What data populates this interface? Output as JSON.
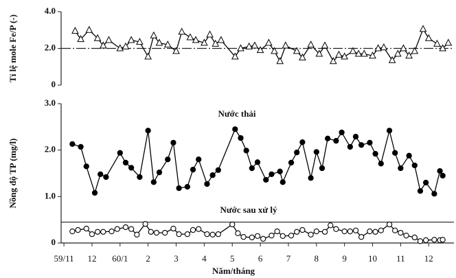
{
  "chart_data": [
    {
      "type": "line",
      "ylabel": "Tỉ lệ mole Fe/P (-)",
      "marker": "triangle",
      "color": "#000000",
      "xlim": [
        -0.1,
        13.9
      ],
      "ylim": [
        0,
        4
      ],
      "yticks": [
        {
          "value": 0,
          "label": "0"
        },
        {
          "value": 2,
          "label": "2.0"
        },
        {
          "value": 4,
          "label": "4.0"
        }
      ],
      "reference_line": {
        "value": 2.0,
        "style": "dashdot"
      },
      "x": [
        0.4,
        0.6,
        0.9,
        1.2,
        1.4,
        1.6,
        2.0,
        2.2,
        2.4,
        2.7,
        3.0,
        3.2,
        3.4,
        3.7,
        4.0,
        4.2,
        4.5,
        4.7,
        5.0,
        5.2,
        5.4,
        5.6,
        6.1,
        6.3,
        6.6,
        6.8,
        7.0,
        7.3,
        7.5,
        7.7,
        7.9,
        8.3,
        8.5,
        8.8,
        9.1,
        9.3,
        9.6,
        9.8,
        10.0,
        10.3,
        10.5,
        10.7,
        11.0,
        11.2,
        11.4,
        11.7,
        11.9,
        12.1,
        12.3,
        12.5,
        12.8,
        13.0,
        13.3,
        13.5,
        13.7
      ],
      "values": [
        2.95,
        2.5,
        3.0,
        2.55,
        2.15,
        2.45,
        2.0,
        2.1,
        2.45,
        2.35,
        1.55,
        2.7,
        2.3,
        2.2,
        1.85,
        2.9,
        2.6,
        2.45,
        2.3,
        2.75,
        2.25,
        2.45,
        1.55,
        2.0,
        2.1,
        2.15,
        1.9,
        2.3,
        1.85,
        1.3,
        2.15,
        1.85,
        1.5,
        2.2,
        1.7,
        2.15,
        1.3,
        1.65,
        1.55,
        1.85,
        1.7,
        1.7,
        1.6,
        2.0,
        2.05,
        1.35,
        1.7,
        2.0,
        1.6,
        1.85,
        3.05,
        2.55,
        2.25,
        2.0,
        2.3
      ]
    },
    {
      "type": "line",
      "ylabel": "Nồng độ TP (mg/l)",
      "xlabel": "Năm/tháng",
      "xlim": [
        -0.1,
        13.9
      ],
      "ylim": [
        0,
        3
      ],
      "yticks": [
        0,
        {
          "value": 1,
          "label": "1.0"
        },
        {
          "value": 2,
          "label": "2.0"
        },
        {
          "value": 3,
          "label": "3.0"
        }
      ],
      "xticks": [
        {
          "value": 0,
          "label": "59/11"
        },
        {
          "value": 1,
          "label": "12"
        },
        {
          "value": 2,
          "label": "60/1"
        },
        {
          "value": 3,
          "label": "2"
        },
        {
          "value": 4,
          "label": "3"
        },
        {
          "value": 5,
          "label": "4"
        },
        {
          "value": 6,
          "label": "5"
        },
        {
          "value": 7,
          "label": "6"
        },
        {
          "value": 8,
          "label": "7"
        },
        {
          "value": 9,
          "label": "8"
        },
        {
          "value": 10,
          "label": "9"
        },
        {
          "value": 11,
          "label": "10"
        },
        {
          "value": 12,
          "label": "11"
        },
        {
          "value": 13,
          "label": "12"
        }
      ],
      "reference_line": {
        "value": 0.45,
        "style": "solid"
      },
      "series": [
        {
          "name": "Nước thải",
          "color": "#000000",
          "marker": "filled-circle",
          "x": [
            0.3,
            0.6,
            0.8,
            1.1,
            1.3,
            1.5,
            2.0,
            2.2,
            2.4,
            2.7,
            3.0,
            3.2,
            3.4,
            3.7,
            3.9,
            4.1,
            4.4,
            4.6,
            4.8,
            5.1,
            5.3,
            5.5,
            6.1,
            6.3,
            6.5,
            6.7,
            6.9,
            7.2,
            7.4,
            7.7,
            7.8,
            8.1,
            8.3,
            8.5,
            8.8,
            9.0,
            9.2,
            9.4,
            9.7,
            9.9,
            10.2,
            10.4,
            10.6,
            10.9,
            11.1,
            11.3,
            11.6,
            11.8,
            12.0,
            12.3,
            12.5,
            12.7,
            12.9,
            13.2,
            13.4,
            13.5
          ],
          "values": [
            2.13,
            2.07,
            1.65,
            1.08,
            1.48,
            1.42,
            1.94,
            1.73,
            1.62,
            1.42,
            2.42,
            1.31,
            1.52,
            1.8,
            2.16,
            1.18,
            1.21,
            1.58,
            1.8,
            1.27,
            1.46,
            1.57,
            2.45,
            2.26,
            1.99,
            1.61,
            1.74,
            1.36,
            1.48,
            1.54,
            1.31,
            1.73,
            1.95,
            2.17,
            1.4,
            1.96,
            1.61,
            2.25,
            2.2,
            2.38,
            2.07,
            2.29,
            2.11,
            2.16,
            1.92,
            1.71,
            2.42,
            1.94,
            1.61,
            1.88,
            1.67,
            1.12,
            1.3,
            1.06,
            1.55,
            1.45
          ]
        },
        {
          "name": "Nước sau xử lý",
          "color": "#000000",
          "marker": "open-circle",
          "x": [
            0.3,
            0.5,
            0.8,
            1.0,
            1.2,
            1.4,
            1.7,
            1.9,
            2.2,
            2.4,
            2.6,
            2.9,
            3.1,
            3.3,
            3.6,
            3.9,
            4.1,
            4.4,
            4.6,
            4.8,
            5.1,
            5.3,
            5.5,
            6.0,
            6.2,
            6.4,
            6.7,
            6.9,
            7.1,
            7.4,
            7.6,
            7.8,
            8.1,
            8.3,
            8.5,
            8.8,
            9.0,
            9.3,
            9.5,
            9.7,
            10.0,
            10.2,
            10.4,
            10.6,
            10.9,
            11.1,
            11.3,
            11.6,
            11.8,
            12.0,
            12.2,
            12.5,
            12.7,
            12.9,
            13.2,
            13.4,
            13.5
          ],
          "values": [
            0.25,
            0.28,
            0.31,
            0.19,
            0.24,
            0.24,
            0.25,
            0.3,
            0.34,
            0.3,
            0.18,
            0.41,
            0.24,
            0.22,
            0.22,
            0.31,
            0.19,
            0.19,
            0.28,
            0.3,
            0.19,
            0.18,
            0.19,
            0.4,
            0.21,
            0.13,
            0.12,
            0.15,
            0.09,
            0.16,
            0.25,
            0.15,
            0.16,
            0.24,
            0.28,
            0.18,
            0.25,
            0.24,
            0.38,
            0.3,
            0.25,
            0.25,
            0.27,
            0.13,
            0.25,
            0.24,
            0.27,
            0.4,
            0.27,
            0.22,
            0.16,
            0.12,
            0.04,
            0.06,
            0.07,
            0.06,
            0.07
          ]
        }
      ]
    }
  ]
}
